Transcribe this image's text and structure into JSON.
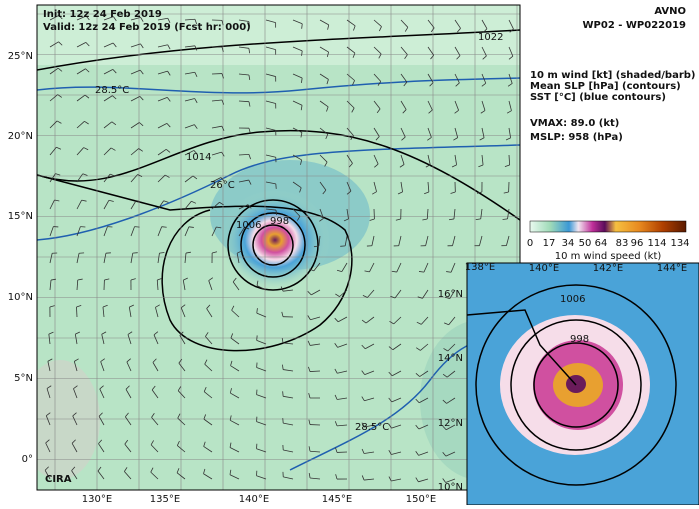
{
  "header": {
    "init": "Init:   12z 24 Feb 2019",
    "valid": "Valid: 12z 24 Feb 2019 (Fcst hr: 000)",
    "model": "AVNO",
    "storm": "WP02 - WP022019"
  },
  "legend": {
    "lines": [
      "10 m wind [kt] (shaded/barb)",
      "Mean SLP [hPa] (contours)",
      "SST [°C] (blue contours)"
    ],
    "vmax": "VMAX:  89.0 (kt)",
    "mslp": "MSLP:  958 (hPa)"
  },
  "colorbar": {
    "ticks": [
      "0",
      "17",
      "34",
      "50",
      "64",
      "83",
      "96",
      "114",
      "134"
    ],
    "label": "10 m wind speed (kt)"
  },
  "map": {
    "lat_labels": [
      "25°N",
      "20°N",
      "15°N",
      "10°N",
      "5°N",
      "0°"
    ],
    "lon_labels": [
      "130°E",
      "135°E",
      "140°E",
      "145°E",
      "150°E"
    ],
    "contour_labels": [
      "1022",
      "1014",
      "1006",
      "998",
      "28.5°C",
      "26°C",
      "28.5°C"
    ],
    "logo": "CIRA"
  },
  "inset": {
    "lon_labels": [
      "138°E",
      "140°E",
      "142°E",
      "144°E"
    ],
    "lat_labels": [
      "16°N",
      "14°N",
      "12°N",
      "10°N"
    ],
    "contour_labels": [
      "1006",
      "998"
    ]
  }
}
